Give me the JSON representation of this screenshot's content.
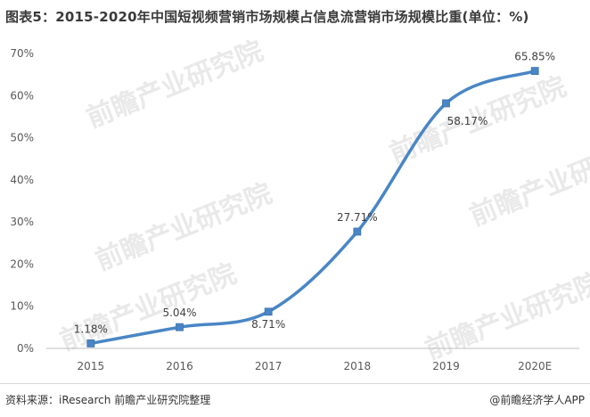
{
  "title": "图表5：2015-2020年中国短视频营销市场规模占信息流营销市场规模比重(单位：%)",
  "watermark_text": "前瞻产业研究院",
  "source": "资料来源：iResearch 前瞻产业研究院整理",
  "brand": "@前瞻经济学人APP",
  "chart_data": {
    "type": "line",
    "categories": [
      "2015",
      "2016",
      "2017",
      "2018",
      "2019",
      "2020E"
    ],
    "series": [
      {
        "values": [
          1.18,
          5.04,
          8.71,
          27.71,
          58.17,
          65.85
        ],
        "labels": [
          "1.18%",
          "5.04%",
          "8.71%",
          "27.71%",
          "58.17%",
          "65.85%"
        ],
        "color": "#4a86c5"
      }
    ],
    "yticks": [
      "0%",
      "10%",
      "20%",
      "30%",
      "40%",
      "50%",
      "60%",
      "70%"
    ],
    "ylim": [
      0,
      70
    ],
    "grid": false,
    "legend": "none"
  }
}
